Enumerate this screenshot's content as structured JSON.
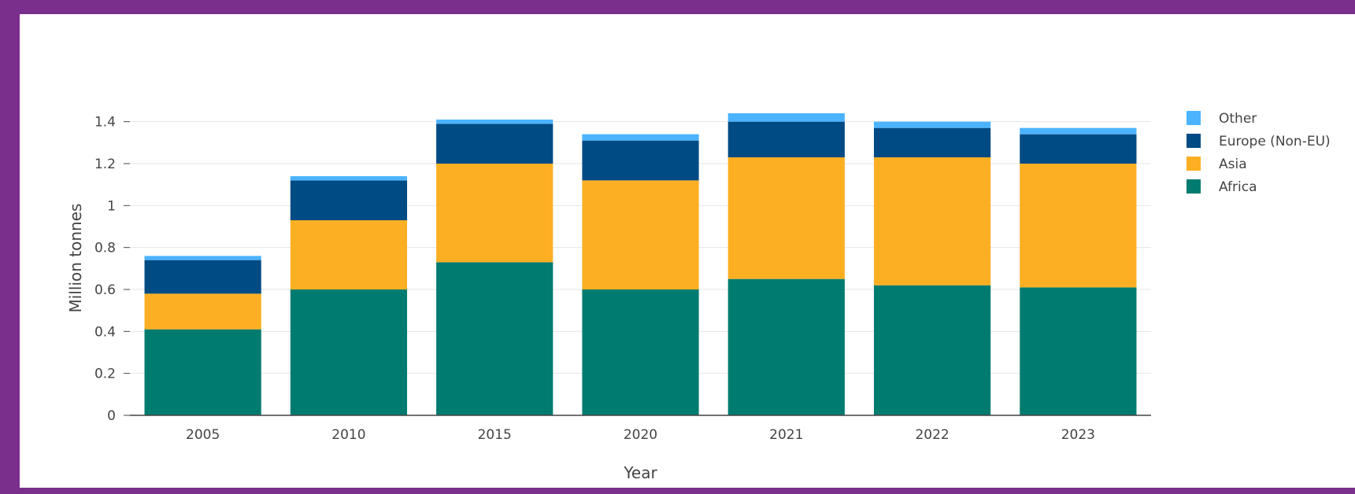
{
  "chart_data": {
    "type": "bar",
    "stacked": true,
    "xlabel": "Year",
    "ylabel": "Million tonnes",
    "categories": [
      "2005",
      "2010",
      "2015",
      "2020",
      "2021",
      "2022",
      "2023"
    ],
    "ylim": [
      0,
      1.5
    ],
    "yticks": [
      {
        "value": 0,
        "label": "0"
      },
      {
        "value": 0.2,
        "label": "0.2"
      },
      {
        "value": 0.4,
        "label": "0.4"
      },
      {
        "value": 0.6,
        "label": "0.6"
      },
      {
        "value": 0.8,
        "label": "0.8"
      },
      {
        "value": 1,
        "label": "1"
      },
      {
        "value": 1.2,
        "label": "1.2"
      },
      {
        "value": 1.4,
        "label": "1.4"
      }
    ],
    "grid": true,
    "legend_position": "right",
    "series": [
      {
        "name": "Africa",
        "color": "#007b6f",
        "values": [
          0.41,
          0.6,
          0.73,
          0.6,
          0.65,
          0.62,
          0.61
        ]
      },
      {
        "name": "Asia",
        "color": "#fcaf22",
        "values": [
          0.17,
          0.33,
          0.47,
          0.52,
          0.58,
          0.61,
          0.59
        ]
      },
      {
        "name": "Europe (Non-EU)",
        "color": "#004b84",
        "values": [
          0.16,
          0.19,
          0.19,
          0.19,
          0.17,
          0.14,
          0.14
        ]
      },
      {
        "name": "Other",
        "color": "#4cb3ff",
        "values": [
          0.02,
          0.02,
          0.02,
          0.03,
          0.04,
          0.03,
          0.03
        ]
      }
    ],
    "legend_order": [
      "Other",
      "Europe (Non-EU)",
      "Asia",
      "Africa"
    ]
  }
}
